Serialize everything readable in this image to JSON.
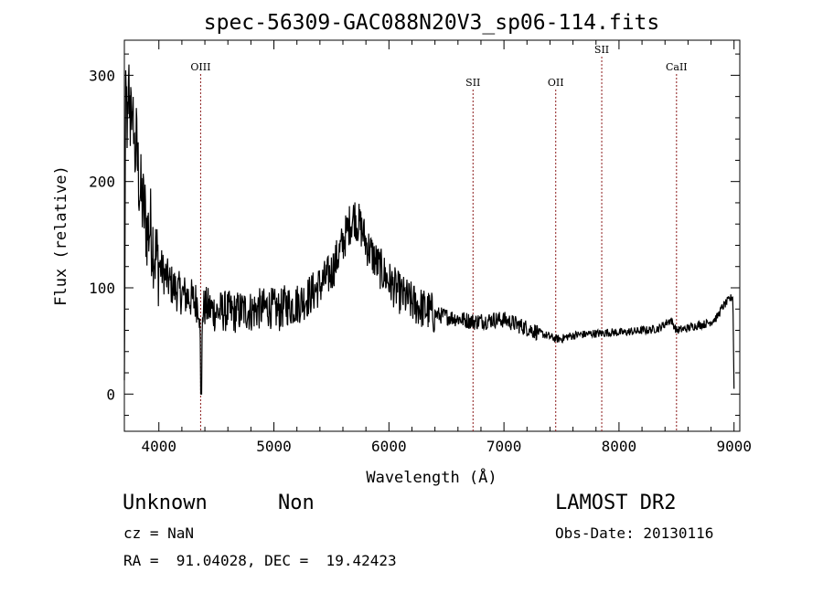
{
  "chart_data": {
    "type": "line",
    "title": "spec-56309-GAC088N20V3_sp06-114.fits",
    "xlabel": "Wavelength (Å)",
    "ylabel": "Flux (relative)",
    "xlim": [
      3700,
      9050
    ],
    "ylim": [
      -35,
      333
    ],
    "xticks": [
      4000,
      5000,
      6000,
      7000,
      8000,
      9000
    ],
    "yticks": [
      0,
      100,
      200,
      300
    ],
    "grid": false,
    "series": [
      {
        "x": [
          3700,
          3710,
          3720,
          3730,
          3740,
          3750,
          3760,
          3770,
          3780,
          3790,
          3800,
          3820,
          3840,
          3860,
          3880,
          3900,
          3925,
          3950,
          3975,
          4000,
          4050,
          4100,
          4150,
          4200,
          4250,
          4300,
          4350,
          4370,
          4380,
          4400,
          4450,
          4500,
          4550,
          4600,
          4650,
          4700,
          4750,
          4800,
          4850,
          4900,
          4950,
          5000,
          5050,
          5100,
          5150,
          5200,
          5250,
          5300,
          5350,
          5400,
          5450,
          5500,
          5550,
          5600,
          5650,
          5700,
          5720,
          5740,
          5760,
          5780,
          5800,
          5850,
          5900,
          5950,
          6000,
          6050,
          6100,
          6150,
          6200,
          6250,
          6300,
          6350,
          6400,
          6450,
          6500,
          6550,
          6600,
          6650,
          6700,
          6750,
          6800,
          6850,
          6900,
          6950,
          7000,
          7050,
          7100,
          7150,
          7200,
          7250,
          7300,
          7350,
          7400,
          7450,
          7500,
          7550,
          7600,
          7650,
          7700,
          7750,
          7800,
          7850,
          7900,
          7950,
          8000,
          8050,
          8100,
          8150,
          8200,
          8250,
          8300,
          8350,
          8400,
          8450,
          8500,
          8550,
          8600,
          8650,
          8700,
          8750,
          8800,
          8850,
          8900,
          8950,
          8990,
          9000
        ],
        "y": [
          0,
          260,
          275,
          235,
          290,
          248,
          305,
          225,
          268,
          215,
          240,
          210,
          188,
          178,
          168,
          152,
          158,
          142,
          128,
          122,
          112,
          104,
          98,
          94,
          92,
          88,
          86,
          0,
          78,
          82,
          80,
          77,
          78,
          78,
          76,
          78,
          79,
          78,
          80,
          80,
          82,
          80,
          78,
          84,
          83,
          85,
          88,
          92,
          97,
          102,
          108,
          115,
          128,
          142,
          158,
          168,
          162,
          160,
          156,
          150,
          142,
          132,
          122,
          114,
          106,
          100,
          94,
          90,
          86,
          83,
          80,
          78,
          75,
          74,
          73,
          72,
          71,
          70,
          69,
          68,
          69,
          69,
          70,
          70,
          70,
          68,
          66,
          64,
          62,
          60,
          58,
          56,
          54,
          52,
          52,
          54,
          55,
          56,
          56,
          57,
          57,
          57,
          58,
          58,
          58,
          58,
          59,
          59,
          60,
          60,
          61,
          62,
          66,
          70,
          60,
          61,
          62,
          64,
          65,
          66,
          68,
          72,
          82,
          88,
          92,
          5
        ]
      }
    ],
    "annotations": [
      {
        "label": "OIII",
        "x": 4363,
        "level": 1
      },
      {
        "label": "SII",
        "x": 6731,
        "level": 2
      },
      {
        "label": "OII",
        "x": 7450,
        "level": 2
      },
      {
        "label": "SII",
        "x": 7850,
        "level": 0
      },
      {
        "label": "CaII",
        "x": 8500,
        "level": 1
      }
    ]
  },
  "footer": {
    "object_type": "Unknown",
    "object_subtype": "Non",
    "survey": "LAMOST DR2",
    "redshift": "cz = NaN",
    "obs_date": "Obs-Date: 20130116",
    "coords": "RA =  91.04028, DEC =  19.42423"
  },
  "colors": {
    "spectrum": "#000000",
    "line_marker": "#8b1a1a",
    "background": "#ffffff"
  }
}
